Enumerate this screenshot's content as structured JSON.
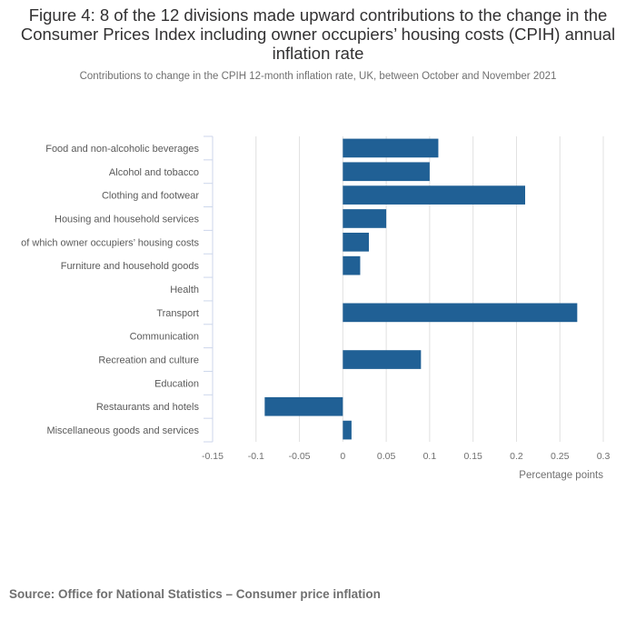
{
  "title": "Figure 4: 8 of the 12 divisions made upward contributions to the change in the Consumer Prices Index including owner occupiers’ housing costs (CPIH) annual inflation rate",
  "subtitle": "Contributions to change in the CPIH 12-month inflation rate, UK, between October and November 2021",
  "source": "Source: Office for National Statistics – Consumer price inflation",
  "colors": {
    "bar": "#206095",
    "grid": "#e0e0e0",
    "axis": "#ccd6eb",
    "label": "#707070"
  },
  "chart_data": {
    "type": "bar",
    "orientation": "horizontal",
    "categories": [
      "Food and non-alcoholic beverages",
      "Alcohol and tobacco",
      "Clothing and footwear",
      "Housing and household services",
      "of which owner occupiers’ housing costs",
      "Furniture and household goods",
      "Health",
      "Transport",
      "Communication",
      "Recreation and culture",
      "Education",
      "Restaurants and hotels",
      "Miscellaneous goods and services"
    ],
    "values": [
      0.11,
      0.1,
      0.21,
      0.05,
      0.03,
      0.02,
      0.0,
      0.27,
      0.0,
      0.09,
      0.0,
      -0.09,
      0.01
    ],
    "xlim": [
      -0.15,
      0.3
    ],
    "xticks": [
      -0.15,
      -0.1,
      -0.05,
      0,
      0.05,
      0.1,
      0.15,
      0.2,
      0.25,
      0.3
    ],
    "xtick_labels": [
      "-0.15",
      "-0.1",
      "-0.05",
      "0",
      "0.05",
      "0.1",
      "0.15",
      "0.2",
      "0.25",
      "0.3"
    ],
    "xlabel": "Percentage points",
    "ylabel": "",
    "grid": true
  }
}
